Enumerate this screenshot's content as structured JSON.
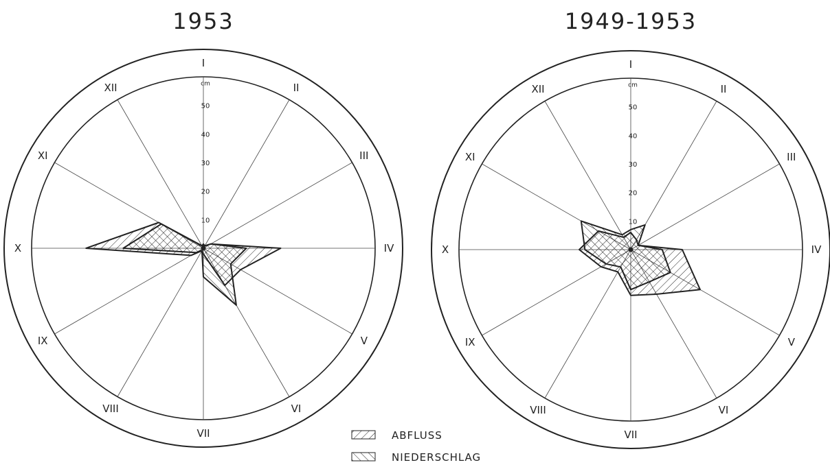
{
  "chart_data": [
    {
      "type": "radar",
      "title": "1953",
      "axis_labels": [
        "I",
        "II",
        "III",
        "IV",
        "V",
        "VI",
        "VII",
        "VIII",
        "IX",
        "X",
        "XI",
        "XII"
      ],
      "radial_unit": "cm",
      "radial_ticks": [
        "10",
        "20",
        "30",
        "40",
        "50"
      ],
      "rlim": [
        0,
        60
      ],
      "series": [
        {
          "name": "ABFLUSS",
          "values": [
            1.5,
            1,
            3,
            27,
            15,
            15,
            2,
            1,
            5,
            41,
            18,
            1
          ]
        },
        {
          "name": "NIEDERSCHLAG",
          "values": [
            1,
            1,
            3,
            15,
            11,
            23,
            10,
            1,
            3,
            28,
            17,
            1
          ]
        }
      ]
    },
    {
      "type": "radar",
      "title": "1949-1953",
      "axis_labels": [
        "I",
        "II",
        "III",
        "IV",
        "V",
        "VI",
        "VII",
        "VIII",
        "IX",
        "X",
        "XI",
        "XII"
      ],
      "radial_unit": "cm",
      "radial_ticks": [
        "10",
        "20",
        "30",
        "40",
        "50"
      ],
      "rlim": [
        0,
        60
      ],
      "series": [
        {
          "name": "ABFLUSS",
          "values": [
            6,
            4,
            3,
            18,
            28,
            18,
            16,
            9,
            12,
            18,
            13,
            5
          ]
        },
        {
          "name": "NIEDERSCHLAG",
          "values": [
            7,
            10,
            3,
            11,
            16,
            13,
            14,
            7,
            10,
            16,
            20,
            6
          ]
        }
      ]
    }
  ],
  "legend": [
    {
      "name": "ABFLUSS",
      "hatch": "diagonal-right"
    },
    {
      "name": "NIEDERSCHLAG",
      "hatch": "diagonal-left"
    }
  ],
  "colors": {
    "ink": "#222222",
    "paper": "#ffffff"
  }
}
